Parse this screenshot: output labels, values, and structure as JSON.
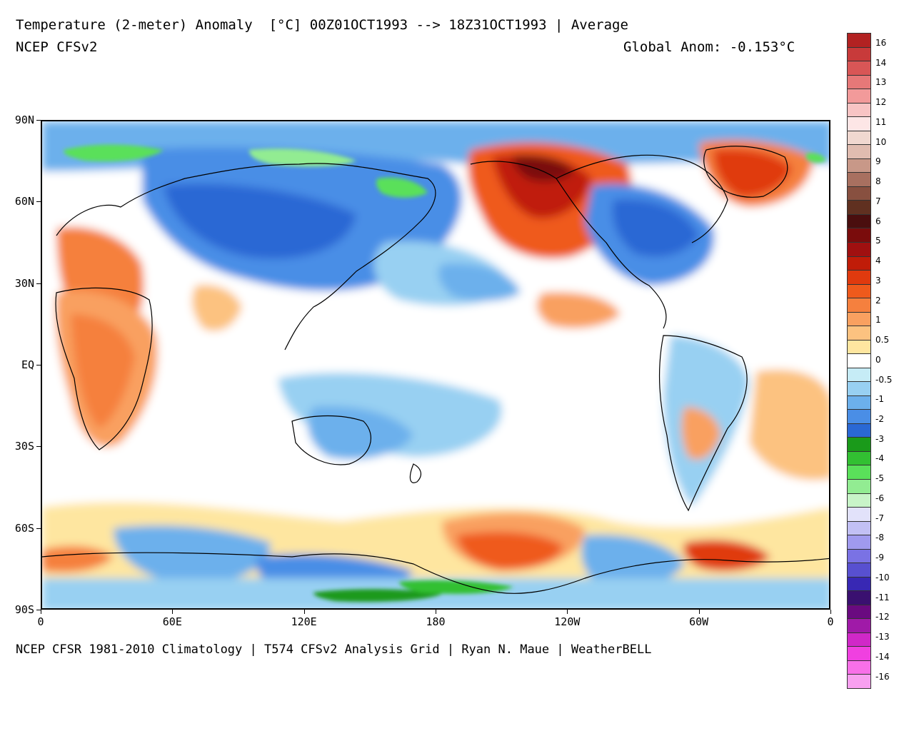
{
  "header": {
    "title": "Temperature (2-meter) Anomaly  [°C] 00Z01OCT1993 --> 18Z31OCT1993 | Average",
    "subtitle": "NCEP CFSv2",
    "global_anom": "Global Anom: -0.153°C"
  },
  "footer": {
    "credits": "NCEP CFSR 1981-2010 Climatology | T574 CFSv2 Analysis Grid | Ryan N. Maue | WeatherBELL"
  },
  "axes": {
    "lat_labels": [
      "90N",
      "60N",
      "30N",
      "EQ",
      "30S",
      "60S",
      "90S"
    ],
    "lon_labels": [
      "0",
      "60E",
      "120E",
      "180",
      "120W",
      "60W",
      "0"
    ]
  },
  "colorbar": {
    "labels": [
      "16",
      "14",
      "13",
      "12",
      "11",
      "10",
      "9",
      "8",
      "7",
      "6",
      "5",
      "4",
      "3",
      "2",
      "1",
      "0.5",
      "0",
      "-0.5",
      "-1",
      "-2",
      "-3",
      "-4",
      "-5",
      "-6",
      "-7",
      "-8",
      "-9",
      "-10",
      "-11",
      "-12",
      "-13",
      "-14",
      "-16"
    ],
    "colors": [
      "#b22222",
      "#c83a3a",
      "#d85656",
      "#e67878",
      "#f29a9a",
      "#f8c4c4",
      "#fde6e6",
      "#f0d8d0",
      "#e0bcb0",
      "#c89888",
      "#a87060",
      "#885040",
      "#603020",
      "#4a0e0e",
      "#7a0c0c",
      "#a01010",
      "#c01c08",
      "#e03a0e",
      "#ef5a1c",
      "#f5803e",
      "#f9a060",
      "#fcc280",
      "#fee6a0",
      "#ffffff",
      "#c6ecf6",
      "#98d0f2",
      "#6cb0ec",
      "#4a8ee6",
      "#2a68d4",
      "#1a9a1a",
      "#32c032",
      "#5ae05a",
      "#92ec92",
      "#c8f4c8",
      "#e2e2fa",
      "#c2c0f4",
      "#a09aee",
      "#7a72e4",
      "#5850d0",
      "#3828b4",
      "#3a1070",
      "#6a0a80",
      "#a01aa8",
      "#d028c8",
      "#f040e0",
      "#f870e8",
      "#f8a0f0"
    ]
  },
  "map": {
    "background_color": "#ffffff",
    "regions": [
      {
        "name": "alaska-warm",
        "color": "#e03a0e"
      },
      {
        "name": "greenland-warm",
        "color": "#e03a0e"
      },
      {
        "name": "siberia-cold",
        "color": "#4a8ee6"
      },
      {
        "name": "canada-cold",
        "color": "#2a68d4"
      },
      {
        "name": "arctic-green",
        "color": "#5ae05a"
      },
      {
        "name": "africa-warm",
        "color": "#f5803e"
      },
      {
        "name": "antarctica-warm",
        "color": "#ef5a1c"
      },
      {
        "name": "antarctica-green",
        "color": "#1a9a1a"
      }
    ]
  }
}
